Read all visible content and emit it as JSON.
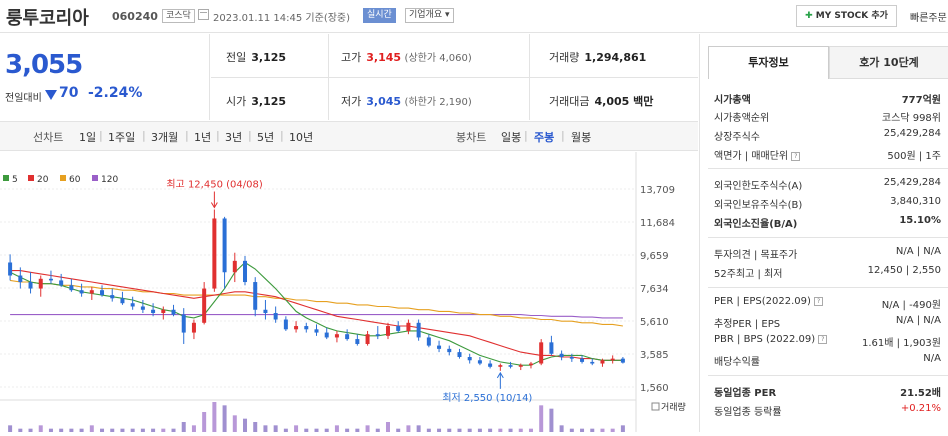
{
  "header": {
    "stock_name": "룽투코리아",
    "stock_code": "060240",
    "market": "코스닥",
    "datetime": "2023.01.11 14:45 기준(장중)",
    "realtime_badge": "실시간",
    "company_info": "기업개요 ▾",
    "mystock_label": "MY STOCK 추가",
    "quick_order": "빠른주문"
  },
  "price": {
    "current": "3,055",
    "change_label": "전일대비",
    "change": "70",
    "change_pct": "-2.24%"
  },
  "summary": {
    "prev_close_label": "전일",
    "prev_close": "3,125",
    "high_label": "고가",
    "high": "3,145",
    "upper_limit": "(상한가 4,060)",
    "volume_label": "거래량",
    "volume": "1,294,861",
    "open_label": "시가",
    "open": "3,125",
    "low_label": "저가",
    "low": "3,045",
    "lower_limit": "(하한가 2,190)",
    "value_label": "거래대금",
    "value": "4,005 백만"
  },
  "toolbar": {
    "line_chart": "선차트",
    "periods": [
      "1일",
      "1주일",
      "3개월",
      "1년",
      "3년",
      "5년",
      "10년"
    ],
    "candle_chart": "봉차트",
    "candle_periods": [
      "일봉",
      "주봉",
      "월봉"
    ]
  },
  "chart_data": {
    "type": "candlestick",
    "ma_legend": [
      {
        "name": "5",
        "color": "#3d9a3d"
      },
      {
        "name": "20",
        "color": "#e03030"
      },
      {
        "name": "60",
        "color": "#e6a020"
      },
      {
        "name": "120",
        "color": "#9a5fc8"
      }
    ],
    "y_ticks": [
      13709,
      11684,
      9659,
      7634,
      5610,
      3585,
      1560
    ],
    "y_tick_labels": [
      "13,709",
      "11,684",
      "9,659",
      "7,634",
      "5,610",
      "3,585",
      "1,560"
    ],
    "ylim": [
      1560,
      13709
    ],
    "annotation_high": "최고 12,450 (04/08)",
    "annotation_low": "최저 2,550 (10/14)",
    "volume_label": "거래량",
    "candles": [
      [
        9200,
        9700,
        8100,
        8400
      ],
      [
        8400,
        8900,
        7600,
        8000
      ],
      [
        8000,
        8600,
        7300,
        7600
      ],
      [
        7600,
        8400,
        7100,
        8200
      ],
      [
        8200,
        8700,
        7900,
        8100
      ],
      [
        8100,
        8500,
        7700,
        7800
      ],
      [
        7800,
        8200,
        7400,
        7500
      ],
      [
        7500,
        7900,
        7100,
        7300
      ],
      [
        7300,
        7700,
        6900,
        7500
      ],
      [
        7500,
        7800,
        7100,
        7200
      ],
      [
        7200,
        7600,
        6800,
        7000
      ],
      [
        7000,
        7400,
        6600,
        6700
      ],
      [
        6700,
        7100,
        6300,
        6500
      ],
      [
        6500,
        6900,
        6100,
        6300
      ],
      [
        6300,
        6700,
        5900,
        6100
      ],
      [
        6100,
        6500,
        5700,
        6300
      ],
      [
        6300,
        6600,
        5900,
        6000
      ],
      [
        6000,
        6400,
        4200,
        4900
      ],
      [
        4900,
        5700,
        4500,
        5500
      ],
      [
        5500,
        8000,
        5400,
        7600
      ],
      [
        7600,
        12450,
        7400,
        11900
      ],
      [
        11900,
        12000,
        7600,
        8600
      ],
      [
        8600,
        9800,
        8000,
        9300
      ],
      [
        9300,
        9600,
        7800,
        8000
      ],
      [
        8000,
        8300,
        5900,
        6300
      ],
      [
        6300,
        6900,
        5700,
        6100
      ],
      [
        6100,
        6500,
        5500,
        5700
      ],
      [
        5700,
        5900,
        5000,
        5100
      ],
      [
        5100,
        5600,
        4900,
        5300
      ],
      [
        5300,
        5500,
        4900,
        5100
      ],
      [
        5100,
        5400,
        4700,
        4900
      ],
      [
        4900,
        5200,
        4500,
        4600
      ],
      [
        4600,
        5000,
        4300,
        4800
      ],
      [
        4800,
        5100,
        4400,
        4500
      ],
      [
        4500,
        4800,
        4100,
        4200
      ],
      [
        4200,
        5000,
        4100,
        4800
      ],
      [
        4800,
        5300,
        4500,
        4700
      ],
      [
        4700,
        5500,
        4500,
        5300
      ],
      [
        5300,
        5600,
        4900,
        5000
      ],
      [
        5000,
        5700,
        4800,
        5500
      ],
      [
        5500,
        5700,
        4400,
        4600
      ],
      [
        4600,
        4800,
        4000,
        4100
      ],
      [
        4100,
        4400,
        3700,
        3900
      ],
      [
        3900,
        4100,
        3500,
        3700
      ],
      [
        3700,
        3900,
        3300,
        3400
      ],
      [
        3400,
        3600,
        3000,
        3200
      ],
      [
        3200,
        3400,
        2900,
        3000
      ],
      [
        3000,
        3200,
        2700,
        2800
      ],
      [
        2800,
        3000,
        2550,
        2900
      ],
      [
        2900,
        3100,
        2700,
        2800
      ],
      [
        2800,
        3000,
        2600,
        2900
      ],
      [
        2900,
        3100,
        2700,
        3000
      ],
      [
        3000,
        4500,
        2900,
        4300
      ],
      [
        4300,
        4700,
        3500,
        3600
      ],
      [
        3600,
        3800,
        3200,
        3400
      ],
      [
        3400,
        3600,
        3100,
        3300
      ],
      [
        3300,
        3500,
        3000,
        3100
      ],
      [
        3100,
        3300,
        2900,
        3000
      ],
      [
        3000,
        3300,
        2800,
        3200
      ],
      [
        3200,
        3500,
        3000,
        3300
      ],
      [
        3300,
        3400,
        3000,
        3055
      ]
    ],
    "ma5": [
      8600,
      8300,
      8000,
      7900,
      7900,
      7800,
      7600,
      7400,
      7300,
      7200,
      7100,
      7000,
      6900,
      6700,
      6500,
      6300,
      6200,
      5900,
      5800,
      6000,
      6800,
      7600,
      8600,
      9200,
      8800,
      8200,
      7600,
      6900,
      6200,
      5800,
      5500,
      5200,
      5000,
      4900,
      4800,
      4700,
      4700,
      4800,
      4900,
      5000,
      5000,
      4800,
      4600,
      4400,
      4100,
      3800,
      3500,
      3300,
      3100,
      3000,
      2900,
      2900,
      3200,
      3400,
      3500,
      3500,
      3500,
      3300,
      3200,
      3200,
      3200
    ],
    "ma20": [
      8700,
      8700,
      8600,
      8500,
      8400,
      8300,
      8200,
      8100,
      8000,
      7900,
      7800,
      7700,
      7600,
      7500,
      7400,
      7300,
      7200,
      7100,
      7000,
      7100,
      7200,
      7300,
      7400,
      7400,
      7300,
      7200,
      7100,
      6900,
      6700,
      6500,
      6300,
      6100,
      5900,
      5800,
      5700,
      5600,
      5500,
      5400,
      5300,
      5300,
      5200,
      5100,
      5000,
      4900,
      4800,
      4700,
      4500,
      4300,
      4100,
      3900,
      3700,
      3600,
      3500,
      3500,
      3400,
      3400,
      3300,
      3300,
      3200,
      3200,
      3200
    ],
    "ma60": [
      8100,
      8000,
      8000,
      7900,
      7900,
      7800,
      7800,
      7700,
      7700,
      7600,
      7600,
      7500,
      7500,
      7400,
      7400,
      7300,
      7300,
      7200,
      7200,
      7200,
      7200,
      7200,
      7200,
      7200,
      7100,
      7100,
      7000,
      7000,
      6900,
      6900,
      6800,
      6800,
      6700,
      6700,
      6600,
      6600,
      6500,
      6500,
      6400,
      6400,
      6300,
      6300,
      6200,
      6200,
      6100,
      6100,
      6000,
      6000,
      5900,
      5900,
      5800,
      5800,
      5700,
      5700,
      5600,
      5600,
      5500,
      5500,
      5400,
      5400,
      5300
    ],
    "ma120": [
      6000,
      6000,
      6000,
      6000,
      6000,
      6000,
      6000,
      6000,
      6000,
      6000,
      6000,
      6000,
      6000,
      6000,
      6000,
      6000,
      6000,
      6000,
      6000,
      6000,
      6000,
      6000,
      6000,
      6000,
      6000,
      6000,
      6000,
      6000,
      6000,
      6000,
      6000,
      6000,
      6000,
      6000,
      6000,
      6000,
      6000,
      6000,
      6000,
      6000,
      6000,
      6000,
      6000,
      6000,
      6000,
      6000,
      6000,
      6000,
      6000,
      6000,
      6000,
      5950,
      5950,
      5900,
      5900,
      5900,
      5850,
      5850,
      5800,
      5800,
      5800
    ],
    "volumes": [
      2,
      1,
      1,
      2,
      1,
      1,
      1,
      1,
      2,
      1,
      1,
      1,
      1,
      1,
      1,
      1,
      1,
      3,
      2,
      6,
      9,
      8,
      5,
      4,
      3,
      2,
      2,
      1,
      2,
      1,
      1,
      1,
      2,
      1,
      1,
      2,
      1,
      3,
      1,
      2,
      2,
      1,
      1,
      1,
      1,
      1,
      1,
      1,
      1,
      1,
      1,
      1,
      8,
      7,
      2,
      1,
      1,
      1,
      1,
      1,
      2
    ]
  },
  "side": {
    "tab_invest": "투자정보",
    "tab_quote": "호가 10단계",
    "rows": [
      {
        "k": "시가총액",
        "v": "777억원",
        "bold": true
      },
      {
        "k": "시가총액순위",
        "v": "코스닥 998위"
      },
      {
        "k": "상장주식수",
        "v": "25,429,284"
      },
      {
        "k": "액면가 | 매매단위",
        "v": "500원 | 1주"
      },
      {
        "k": "외국인한도주식수(A)",
        "v": "25,429,284"
      },
      {
        "k": "외국인보유주식수(B)",
        "v": "3,840,310"
      },
      {
        "k": "외국인소진율(B/A)",
        "v": "15.10%",
        "bold": true
      },
      {
        "k": "투자의견 | 목표주가",
        "v": "N/A | N/A"
      },
      {
        "k": "52주최고 | 최저",
        "v": "12,450 | 2,550"
      },
      {
        "k": "PER | EPS(2022.09)",
        "v": "N/A | -490원"
      },
      {
        "k": "추정PER | EPS",
        "v": "N/A | N/A"
      },
      {
        "k": "PBR | BPS (2022.09)",
        "v": "1.61배 | 1,903원"
      },
      {
        "k": "배당수익률",
        "v": "N/A"
      },
      {
        "k": "동일업종 PER",
        "v": "21.52배",
        "bold": true
      },
      {
        "k": "동일업종 등락률",
        "v": "+0.21%",
        "red": true
      }
    ]
  }
}
